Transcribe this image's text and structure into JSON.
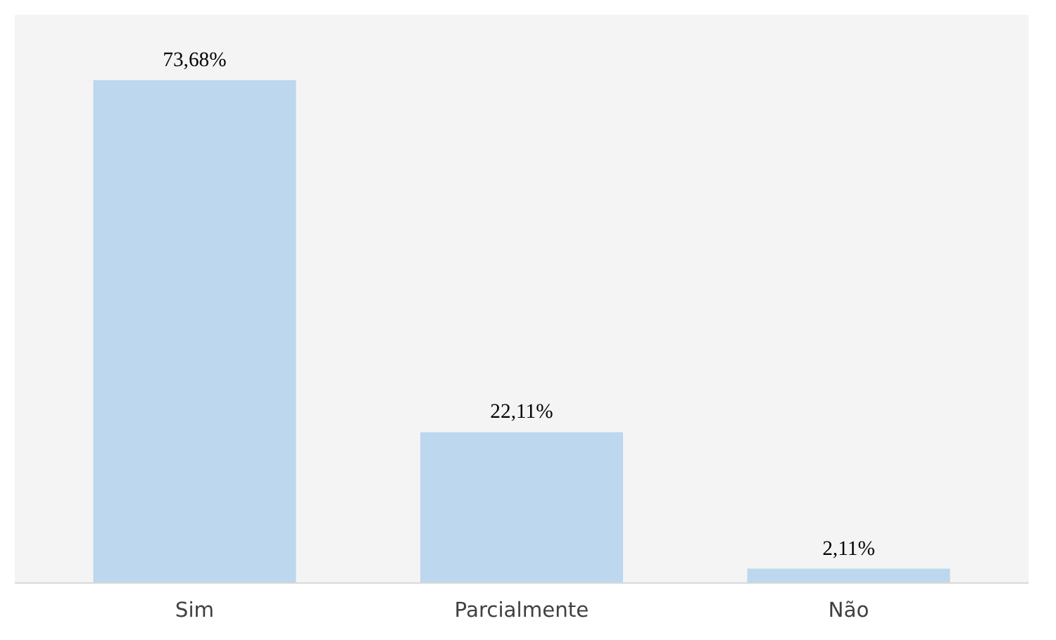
{
  "chart_data": {
    "type": "bar",
    "categories": [
      "Sim",
      "Parcialmente",
      "Não"
    ],
    "values": [
      73.68,
      22.11,
      2.11
    ],
    "value_labels": [
      "73,68%",
      "22,11%",
      "2,11%"
    ],
    "color": "#bdd7ee",
    "tick_labels": "x",
    "grid": false
  }
}
